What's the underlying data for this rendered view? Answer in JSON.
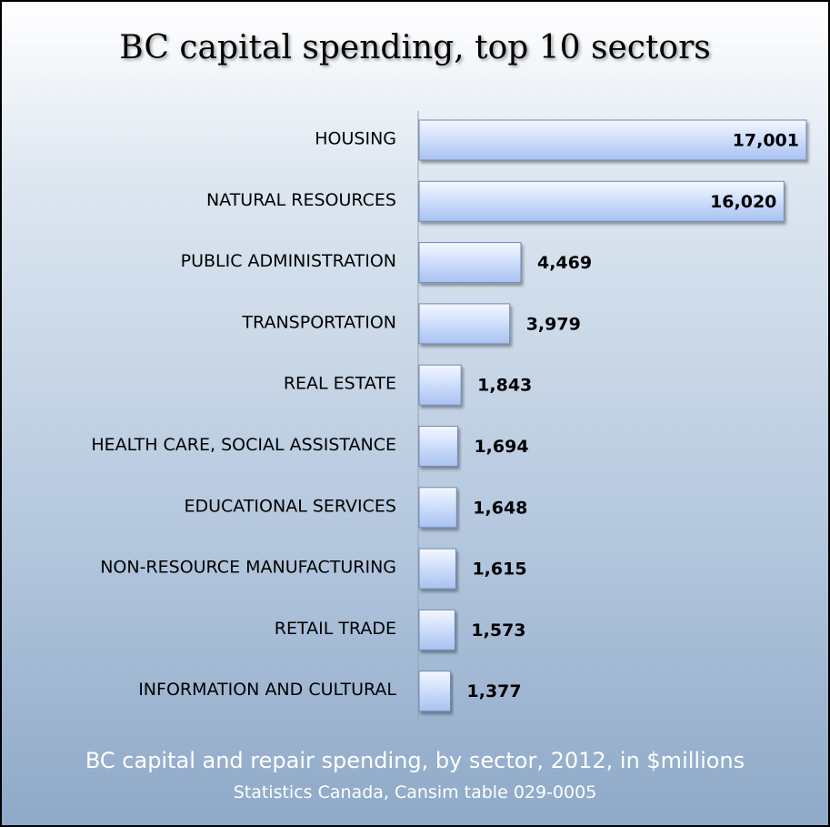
{
  "chart_data": {
    "type": "bar",
    "orientation": "horizontal",
    "title": "BC capital spending, top 10 sectors",
    "categories": [
      "HOUSING",
      "NATURAL RESOURCES",
      "PUBLIC ADMINISTRATION",
      "TRANSPORTATION",
      "REAL ESTATE",
      "HEALTH CARE, SOCIAL ASSISTANCE",
      "EDUCATIONAL SERVICES",
      "NON-RESOURCE MANUFACTURING",
      "RETAIL TRADE",
      "INFORMATION AND CULTURAL"
    ],
    "values": [
      17001,
      16020,
      4469,
      3979,
      1843,
      1694,
      1648,
      1615,
      1573,
      1377
    ],
    "value_labels": [
      "17,001",
      "16,020",
      "4,469",
      "3,979",
      "1,843",
      "1,694",
      "1,648",
      "1,615",
      "1,573",
      "1,377"
    ],
    "bar_color": "#b3c9f2",
    "bar_border_color": "#6f89b8",
    "grid": false
  },
  "caption": "BC capital and repair spending, by sector, 2012, in $millions",
  "source": "Statistics Canada, Cansim table 029-0005"
}
